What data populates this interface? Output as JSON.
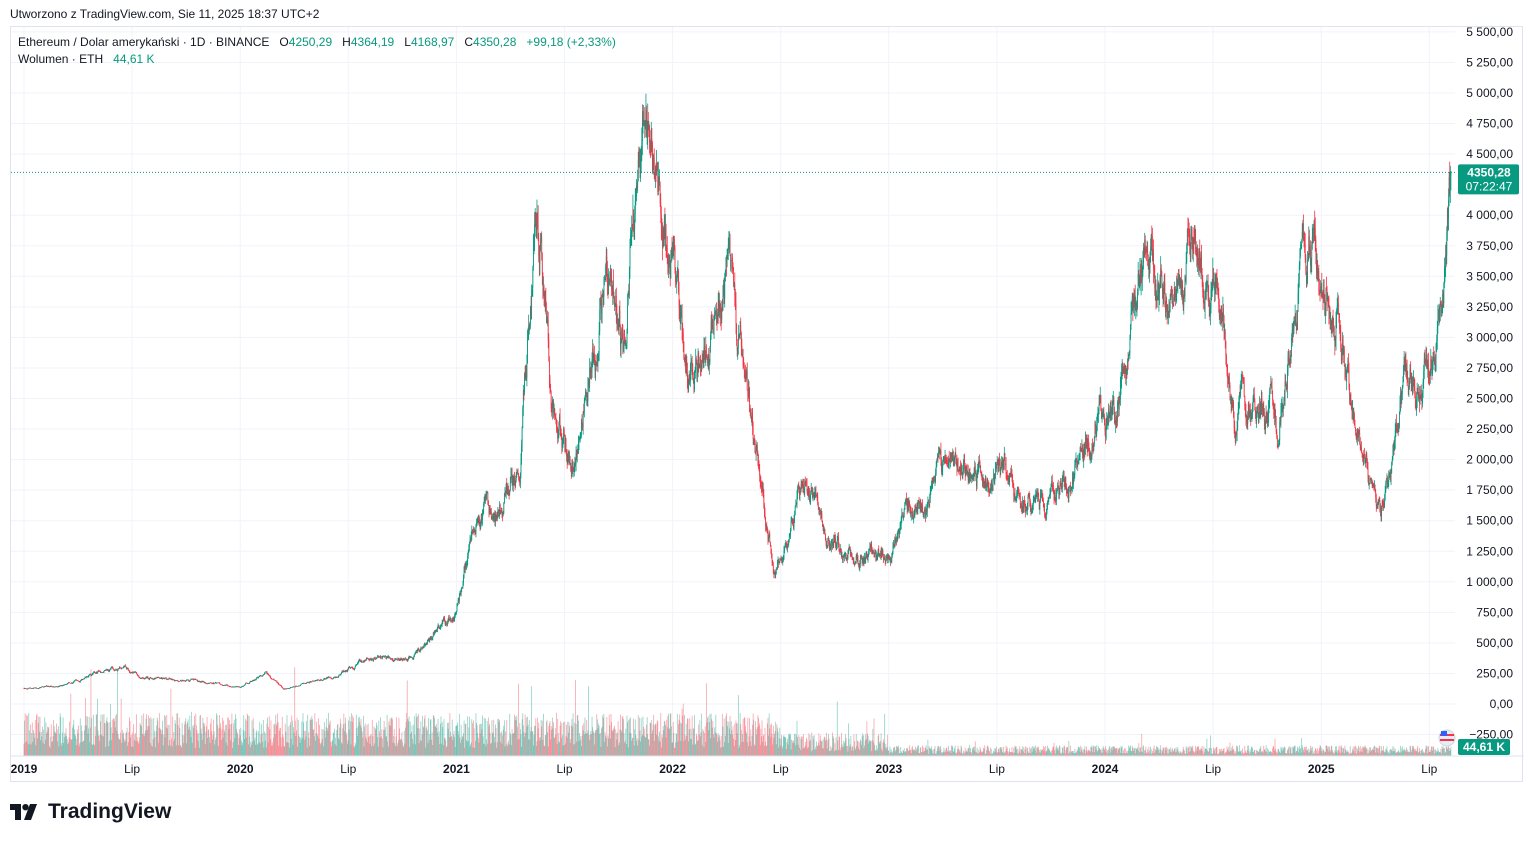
{
  "header": {
    "created_by": "Utworzono z TradingView.com, Sie 11, 2025 18:37 UTC+2"
  },
  "legend": {
    "symbol": "Ethereum / Dolar amerykański · 1D · BINANCE",
    "o_label": "O",
    "o_value": "4250,29",
    "h_label": "H",
    "h_value": "4364,19",
    "l_label": "L",
    "l_value": "4168,97",
    "c_label": "C",
    "c_value": "4350,28",
    "change": "+99,18 (+2,33%)",
    "volume_label": "Wolumen · ETH",
    "volume_value": "44,61 K"
  },
  "colors": {
    "up": "#089981",
    "down": "#f23645",
    "grid": "#f0f3fa",
    "text": "#131722",
    "axis_text": "#131722"
  },
  "price_tag": {
    "price": "4350,28",
    "countdown": "07:22:47"
  },
  "volume_tag": {
    "value": "44,61 K"
  },
  "brand": {
    "name": "TradingView"
  },
  "chart_data": {
    "type": "candlestick",
    "title": "Ethereum / Dolar amerykański · 1D · BINANCE",
    "ylim": [
      -250,
      5500
    ],
    "y_ticks": [
      {
        "v": 5500,
        "label": "5 500,00"
      },
      {
        "v": 5250,
        "label": "5 250,00"
      },
      {
        "v": 5000,
        "label": "5 000,00"
      },
      {
        "v": 4750,
        "label": "4 750,00"
      },
      {
        "v": 4500,
        "label": "4 500,00"
      },
      {
        "v": 4000,
        "label": "4 000,00"
      },
      {
        "v": 3750,
        "label": "3 750,00"
      },
      {
        "v": 3500,
        "label": "3 500,00"
      },
      {
        "v": 3250,
        "label": "3 250,00"
      },
      {
        "v": 3000,
        "label": "3 000,00"
      },
      {
        "v": 2750,
        "label": "2 750,00"
      },
      {
        "v": 2500,
        "label": "2 500,00"
      },
      {
        "v": 2250,
        "label": "2 250,00"
      },
      {
        "v": 2000,
        "label": "2 000,00"
      },
      {
        "v": 1750,
        "label": "1 750,00"
      },
      {
        "v": 1500,
        "label": "1 500,00"
      },
      {
        "v": 1250,
        "label": "1 250,00"
      },
      {
        "v": 1000,
        "label": "1 000,00"
      },
      {
        "v": 750,
        "label": "750,00"
      },
      {
        "v": 500,
        "label": "500,00"
      },
      {
        "v": 250,
        "label": "250,00"
      },
      {
        "v": 0,
        "label": "0,00"
      },
      {
        "v": -250,
        "label": "−250,00"
      }
    ],
    "x_ticks": [
      {
        "t": 2019.0,
        "label": "2019",
        "bold": true
      },
      {
        "t": 2019.5,
        "label": "Lip",
        "bold": false
      },
      {
        "t": 2020.0,
        "label": "2020",
        "bold": true
      },
      {
        "t": 2020.5,
        "label": "Lip",
        "bold": false
      },
      {
        "t": 2021.0,
        "label": "2021",
        "bold": true
      },
      {
        "t": 2021.5,
        "label": "Lip",
        "bold": false
      },
      {
        "t": 2022.0,
        "label": "2022",
        "bold": true
      },
      {
        "t": 2022.5,
        "label": "Lip",
        "bold": false
      },
      {
        "t": 2023.0,
        "label": "2023",
        "bold": true
      },
      {
        "t": 2023.5,
        "label": "Lip",
        "bold": false
      },
      {
        "t": 2024.0,
        "label": "2024",
        "bold": true
      },
      {
        "t": 2024.5,
        "label": "Lip",
        "bold": false
      },
      {
        "t": 2025.0,
        "label": "2025",
        "bold": true
      },
      {
        "t": 2025.5,
        "label": "Lip",
        "bold": false
      }
    ],
    "last_price": 4350.28,
    "price_path": [
      [
        2019.0,
        130
      ],
      [
        2019.1,
        140
      ],
      [
        2019.2,
        160
      ],
      [
        2019.35,
        260
      ],
      [
        2019.47,
        300
      ],
      [
        2019.55,
        220
      ],
      [
        2019.7,
        200
      ],
      [
        2019.85,
        180
      ],
      [
        2020.0,
        130
      ],
      [
        2020.12,
        250
      ],
      [
        2020.2,
        120
      ],
      [
        2020.3,
        170
      ],
      [
        2020.45,
        230
      ],
      [
        2020.6,
        390
      ],
      [
        2020.7,
        350
      ],
      [
        2020.8,
        380
      ],
      [
        2020.9,
        600
      ],
      [
        2021.0,
        730
      ],
      [
        2021.1,
        1650
      ],
      [
        2021.2,
        1600
      ],
      [
        2021.3,
        2100
      ],
      [
        2021.37,
        4150
      ],
      [
        2021.45,
        2400
      ],
      [
        2021.55,
        1900
      ],
      [
        2021.6,
        2500
      ],
      [
        2021.67,
        3300
      ],
      [
        2021.72,
        3600
      ],
      [
        2021.77,
        2900
      ],
      [
        2021.8,
        3600
      ],
      [
        2021.86,
        4600
      ],
      [
        2021.93,
        4100
      ],
      [
        2022.0,
        3700
      ],
      [
        2022.06,
        2600
      ],
      [
        2022.12,
        2800
      ],
      [
        2022.17,
        2950
      ],
      [
        2022.25,
        3450
      ],
      [
        2022.33,
        2800
      ],
      [
        2022.4,
        1900
      ],
      [
        2022.47,
        1100
      ],
      [
        2022.55,
        1500
      ],
      [
        2022.62,
        1900
      ],
      [
        2022.7,
        1350
      ],
      [
        2022.8,
        1300
      ],
      [
        2022.87,
        1200
      ],
      [
        2022.95,
        1200
      ],
      [
        2023.0,
        1200
      ],
      [
        2023.08,
        1600
      ],
      [
        2023.15,
        1550
      ],
      [
        2023.25,
        1850
      ],
      [
        2023.33,
        1900
      ],
      [
        2023.45,
        1850
      ],
      [
        2023.55,
        1900
      ],
      [
        2023.65,
        1650
      ],
      [
        2023.75,
        1600
      ],
      [
        2023.87,
        2000
      ],
      [
        2023.95,
        2300
      ],
      [
        2024.05,
        2400
      ],
      [
        2024.15,
        3400
      ],
      [
        2024.2,
        3700
      ],
      [
        2024.3,
        3100
      ],
      [
        2024.4,
        3700
      ],
      [
        2024.5,
        3400
      ],
      [
        2024.57,
        2700
      ],
      [
        2024.6,
        2350
      ],
      [
        2024.7,
        2500
      ],
      [
        2024.8,
        2400
      ],
      [
        2024.87,
        3200
      ],
      [
        2024.95,
        3700
      ],
      [
        2025.0,
        3400
      ],
      [
        2025.08,
        3200
      ],
      [
        2025.12,
        2700
      ],
      [
        2025.2,
        1900
      ],
      [
        2025.27,
        1500
      ],
      [
        2025.32,
        1800
      ],
      [
        2025.38,
        2600
      ],
      [
        2025.45,
        2500
      ],
      [
        2025.52,
        2900
      ],
      [
        2025.58,
        3700
      ],
      [
        2025.6,
        4350.28
      ]
    ],
    "volume_ylim": [
      0,
      3400
    ]
  }
}
